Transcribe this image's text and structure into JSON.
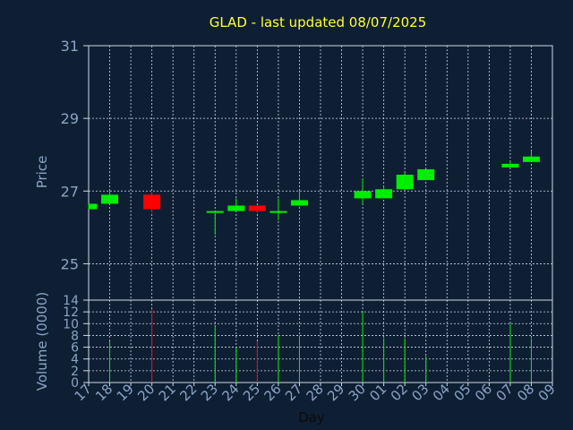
{
  "chart_data": {
    "type": "candlestick",
    "title": "GLAD - last updated 08/07/2025",
    "ylabel": "Price",
    "xlabel": "Day",
    "volume_label": "Volume (0000)",
    "ylim": [
      24,
      31
    ],
    "yticks": [
      25,
      27,
      29,
      31
    ],
    "volume_ylim": [
      0,
      14
    ],
    "volume_ticks": [
      0,
      2,
      4,
      6,
      8,
      10,
      12,
      14
    ],
    "x_ticks": [
      "17",
      "18",
      "19",
      "20",
      "21",
      "22",
      "23",
      "24",
      "25",
      "26",
      "27",
      "28",
      "29",
      "30",
      "01",
      "02",
      "03",
      "04",
      "05",
      "06",
      "07",
      "08",
      "09"
    ],
    "grid": true,
    "colors": {
      "up": "#00ee00",
      "down": "#ff0000",
      "grid": "#cfd8e3",
      "background": "#0f1f33",
      "axis": "#8aa4c8",
      "title": "#ffff33"
    },
    "candles": [
      {
        "day": "17",
        "open": 26.5,
        "high": 26.65,
        "low": 26.5,
        "close": 26.65,
        "volume": 0
      },
      {
        "day": "18",
        "open": 26.65,
        "high": 27.0,
        "low": 26.65,
        "close": 26.9,
        "volume": 7
      },
      {
        "day": "20",
        "open": 26.9,
        "high": 26.95,
        "low": 26.4,
        "close": 26.5,
        "volume": 12.5
      },
      {
        "day": "23",
        "open": 26.4,
        "high": 26.4,
        "low": 25.8,
        "close": 26.45,
        "volume": 9.5
      },
      {
        "day": "24",
        "open": 26.45,
        "high": 26.8,
        "low": 26.45,
        "close": 26.6,
        "volume": 6
      },
      {
        "day": "25",
        "open": 26.6,
        "high": 26.6,
        "low": 26.4,
        "close": 26.45,
        "volume": 7
      },
      {
        "day": "26",
        "open": 26.4,
        "high": 26.8,
        "low": 26.2,
        "close": 26.45,
        "volume": 8
      },
      {
        "day": "27",
        "open": 26.6,
        "high": 27.0,
        "low": 26.6,
        "close": 26.75,
        "volume": 8
      },
      {
        "day": "30",
        "open": 26.8,
        "high": 27.35,
        "low": 26.65,
        "close": 27.0,
        "volume": 12
      },
      {
        "day": "01",
        "open": 26.8,
        "high": 27.1,
        "low": 26.8,
        "close": 27.05,
        "volume": 7.5
      },
      {
        "day": "02",
        "open": 27.05,
        "high": 27.5,
        "low": 27.05,
        "close": 27.45,
        "volume": 7.5
      },
      {
        "day": "03",
        "open": 27.3,
        "high": 27.6,
        "low": 27.3,
        "close": 27.6,
        "volume": 4.5
      },
      {
        "day": "07",
        "open": 27.65,
        "high": 27.8,
        "low": 27.65,
        "close": 27.75,
        "volume": 10
      },
      {
        "day": "08",
        "open": 27.8,
        "high": 28.1,
        "low": 27.8,
        "close": 27.95,
        "volume": 7.5
      }
    ]
  }
}
